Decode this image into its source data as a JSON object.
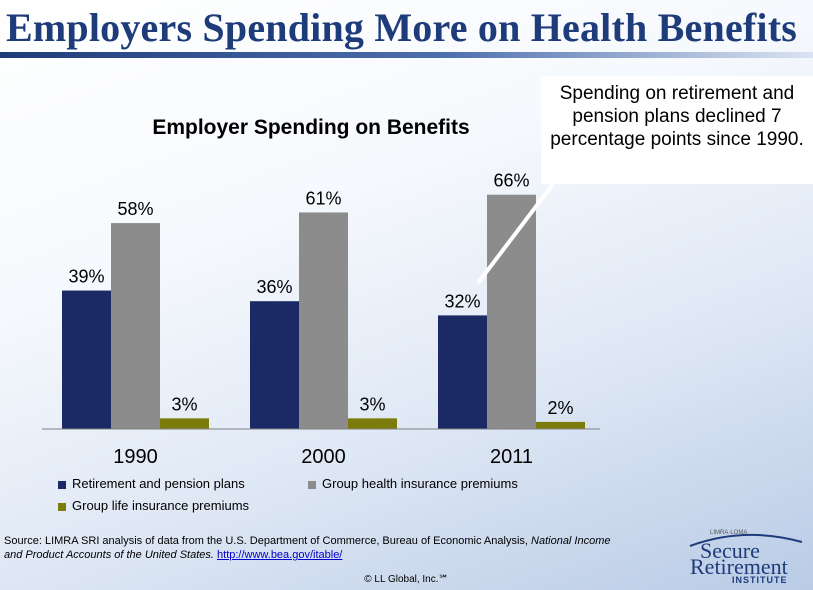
{
  "slide": {
    "title": "Employers Spending More on Health Benefits",
    "callout": "Spending on retirement and pension plans declined 7 percentage points since 1990.",
    "source_prefix": "Source: LIMRA SRI analysis of data from the U.S. Department of Commerce, Bureau of Economic Analysis, ",
    "source_italic": "National Income and Product Accounts of the United States.",
    "source_link": "http://www.bea.gov/itable/",
    "copyright": "© LL Global, Inc.℠",
    "logo": {
      "small": "LIMRA·LOMA",
      "line1": "Secure",
      "line2": "Retirement",
      "line3": "INSTITUTE"
    }
  },
  "chart_data": {
    "type": "bar",
    "title": "Employer Spending on Benefits",
    "categories": [
      "1990",
      "2000",
      "2011"
    ],
    "series": [
      {
        "name": "Retirement and pension plans",
        "values": [
          39,
          36,
          32
        ],
        "labels": [
          "39%",
          "36%",
          "32%"
        ],
        "color": "#1b2a64"
      },
      {
        "name": "Group health insurance premiums",
        "values": [
          58,
          61,
          66
        ],
        "labels": [
          "58%",
          "61%",
          "66%"
        ],
        "color": "#8c8c8c"
      },
      {
        "name": "Group life insurance premiums",
        "values": [
          3,
          3,
          2
        ],
        "labels": [
          "3%",
          "3%",
          "2%"
        ],
        "color": "#7c7c0c"
      }
    ],
    "ylim": [
      0,
      100
    ],
    "grid": false,
    "legend_position": "bottom"
  }
}
